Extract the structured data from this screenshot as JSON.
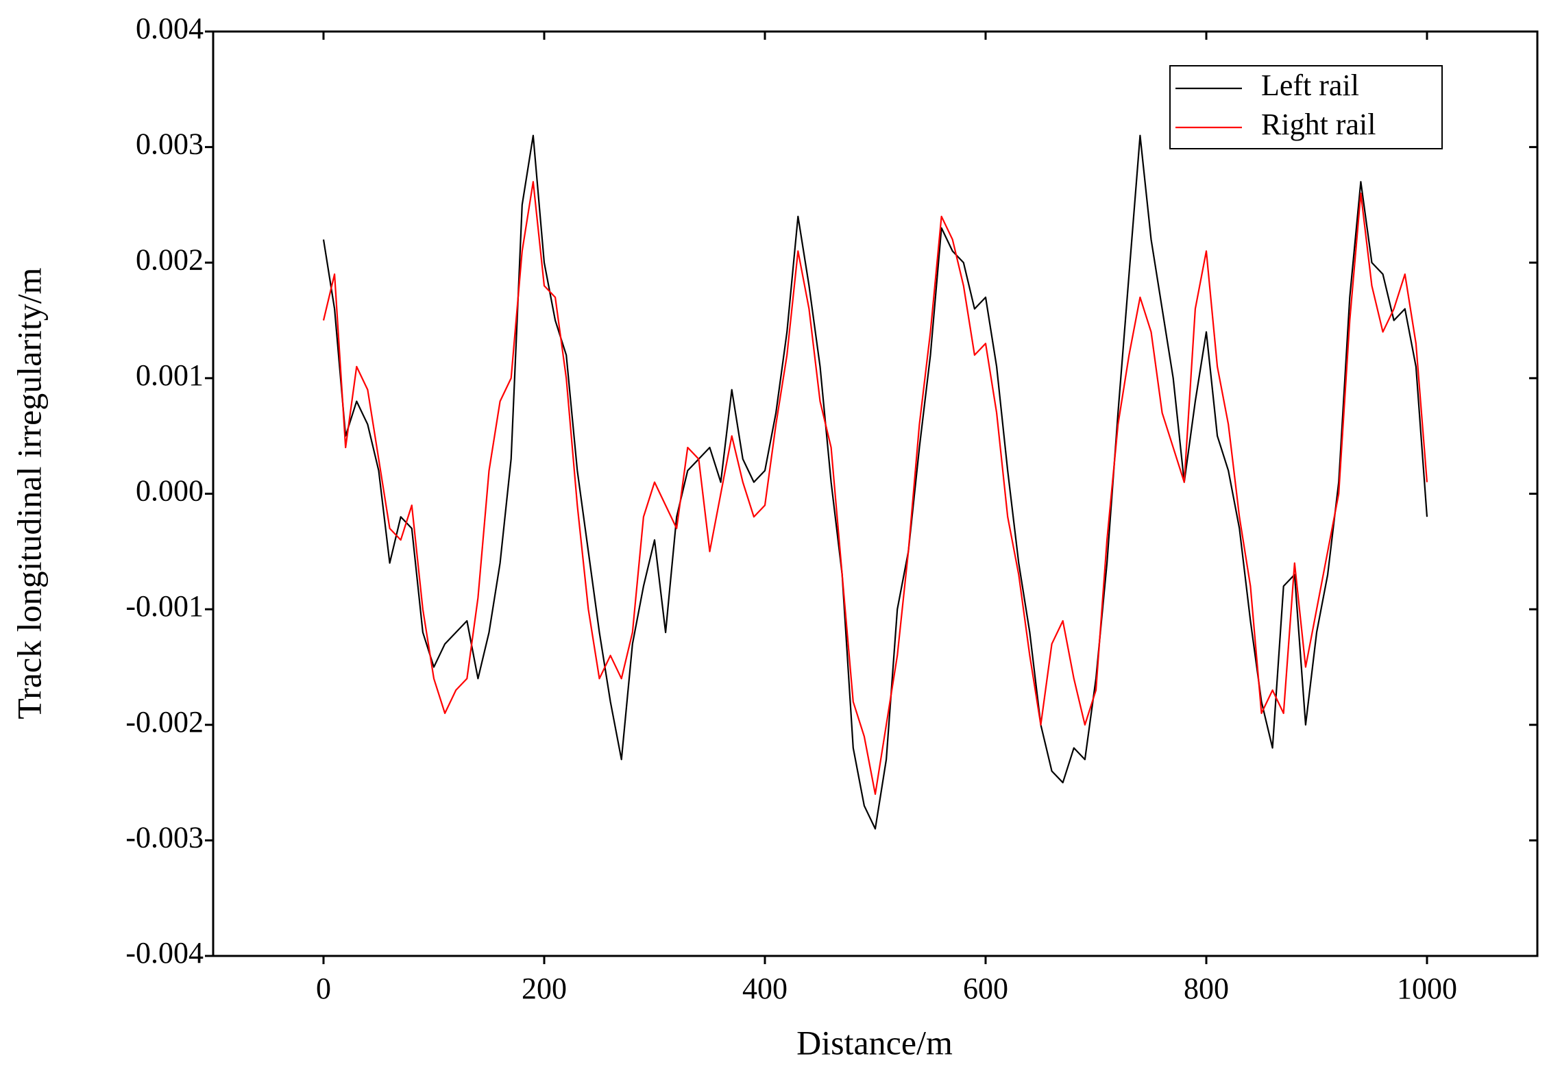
{
  "chart_data": {
    "type": "line",
    "xlabel": "Distance/m",
    "ylabel": "Track longitudinal irregularity/m",
    "xlim": [
      -100,
      1100
    ],
    "xticks": [
      0,
      200,
      400,
      600,
      800,
      1000
    ],
    "ylim": [
      -0.004,
      0.004
    ],
    "yticks": [
      {
        "value": -0.004,
        "label": "-0.004"
      },
      {
        "value": -0.003,
        "label": "-0.003"
      },
      {
        "value": -0.002,
        "label": "-0.002"
      },
      {
        "value": -0.001,
        "label": "-0.001"
      },
      {
        "value": 0,
        "label": "0.000"
      },
      {
        "value": 0.001,
        "label": "0.001"
      },
      {
        "value": 0.002,
        "label": "0.002"
      },
      {
        "value": 0.003,
        "label": "0.003"
      },
      {
        "value": 0.004,
        "label": "0.004"
      }
    ],
    "legend": "upper right",
    "grid": false,
    "x": [
      0,
      10,
      20,
      30,
      40,
      50,
      60,
      70,
      80,
      90,
      100,
      110,
      120,
      130,
      140,
      150,
      160,
      170,
      180,
      190,
      200,
      210,
      220,
      230,
      240,
      250,
      260,
      270,
      280,
      290,
      300,
      310,
      320,
      330,
      340,
      350,
      360,
      370,
      380,
      390,
      400,
      410,
      420,
      430,
      440,
      450,
      460,
      470,
      480,
      490,
      500,
      510,
      520,
      530,
      540,
      550,
      560,
      570,
      580,
      590,
      600,
      610,
      620,
      630,
      640,
      650,
      660,
      670,
      680,
      690,
      700,
      710,
      720,
      730,
      740,
      750,
      760,
      770,
      780,
      790,
      800,
      810,
      820,
      830,
      840,
      850,
      860,
      870,
      880,
      890,
      900,
      910,
      920,
      930,
      940,
      950,
      960,
      970,
      980,
      990,
      1000
    ],
    "series": [
      {
        "name": "Left rail",
        "color": "#000000",
        "values": [
          0.0022,
          0.0016,
          0.0005,
          0.0008,
          0.0006,
          0.0002,
          -0.0006,
          -0.0002,
          -0.0003,
          -0.0012,
          -0.0015,
          -0.0013,
          -0.0012,
          -0.0011,
          -0.0016,
          -0.0012,
          -0.0006,
          0.0003,
          0.0025,
          0.0031,
          0.002,
          0.0015,
          0.0012,
          0.0002,
          -0.0005,
          -0.0012,
          -0.0018,
          -0.0023,
          -0.0013,
          -0.0008,
          -0.0004,
          -0.0012,
          -0.0002,
          0.0002,
          0.0003,
          0.0004,
          0.0001,
          0.0009,
          0.0003,
          0.0001,
          0.0002,
          0.0007,
          0.0014,
          0.0024,
          0.0018,
          0.0011,
          0.0001,
          -0.0007,
          -0.0022,
          -0.0027,
          -0.0029,
          -0.0023,
          -0.001,
          -0.0005,
          0.0004,
          0.0012,
          0.0023,
          0.0021,
          0.002,
          0.0016,
          0.0017,
          0.0011,
          0.0002,
          -0.0006,
          -0.0012,
          -0.002,
          -0.0024,
          -0.0025,
          -0.0022,
          -0.0023,
          -0.0016,
          -0.0006,
          0.0007,
          0.0019,
          0.0031,
          0.0022,
          0.0016,
          0.001,
          0.0001,
          0.0008,
          0.0014,
          0.0005,
          0.0002,
          -0.0003,
          -0.0011,
          -0.0018,
          -0.0022,
          -0.0008,
          -0.0007,
          -0.002,
          -0.0012,
          -0.0007,
          0.0001,
          0.0017,
          0.0027,
          0.002,
          0.0019,
          0.0015,
          0.0016,
          0.0011,
          -0.0002
        ]
      },
      {
        "name": "Right rail",
        "color": "#ff0000",
        "values": [
          0.0015,
          0.0019,
          0.0004,
          0.0011,
          0.0009,
          0.0003,
          -0.0003,
          -0.0004,
          -0.0001,
          -0.001,
          -0.0016,
          -0.0019,
          -0.0017,
          -0.0016,
          -0.0009,
          0.0002,
          0.0008,
          0.001,
          0.0021,
          0.0027,
          0.0018,
          0.0017,
          0.001,
          -0.0001,
          -0.001,
          -0.0016,
          -0.0014,
          -0.0016,
          -0.0012,
          -0.0002,
          0.0001,
          -0.0001,
          -0.0003,
          0.0004,
          0.0003,
          -0.0005,
          0.0,
          0.0005,
          0.0001,
          -0.0002,
          -0.0001,
          0.0006,
          0.0012,
          0.0021,
          0.0016,
          0.0008,
          0.0004,
          -0.0007,
          -0.0018,
          -0.0021,
          -0.0026,
          -0.002,
          -0.0014,
          -0.0005,
          0.0006,
          0.0014,
          0.0024,
          0.0022,
          0.0018,
          0.0012,
          0.0013,
          0.0007,
          -0.0002,
          -0.0007,
          -0.0014,
          -0.002,
          -0.0013,
          -0.0011,
          -0.0016,
          -0.002,
          -0.0017,
          -0.0004,
          0.0006,
          0.0012,
          0.0017,
          0.0014,
          0.0007,
          0.0004,
          0.0001,
          0.0016,
          0.0021,
          0.0011,
          0.0006,
          -0.0002,
          -0.0008,
          -0.0019,
          -0.0017,
          -0.0019,
          -0.0006,
          -0.0015,
          -0.001,
          -0.0005,
          0.0,
          0.0015,
          0.0026,
          0.0018,
          0.0014,
          0.0016,
          0.0019,
          0.0013,
          0.0001
        ]
      }
    ]
  }
}
